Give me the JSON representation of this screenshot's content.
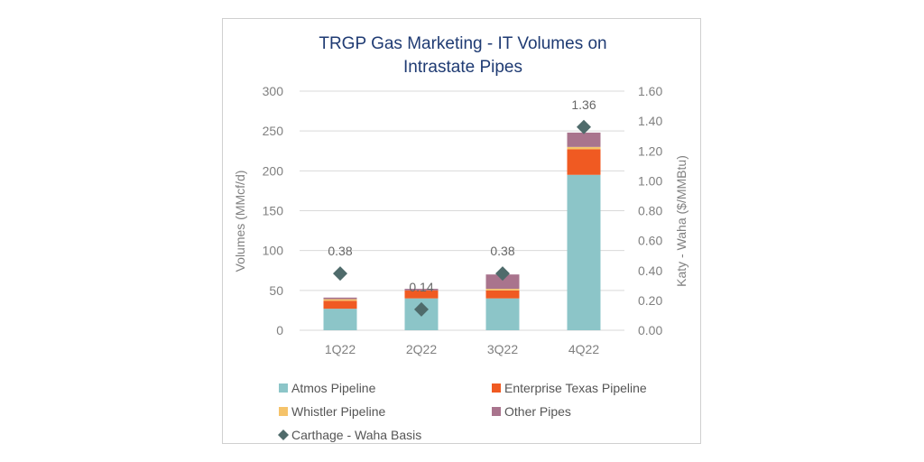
{
  "chart_data": {
    "type": "bar",
    "title_lines": [
      "TRGP Gas Marketing - IT Volumes on",
      "Intrastate Pipes"
    ],
    "categories": [
      "1Q22",
      "2Q22",
      "3Q22",
      "4Q22"
    ],
    "ylabel": "Volumes (MMcf/d)",
    "y2label": "Katy - Waha ($/MMBtu)",
    "ylim": [
      0,
      300
    ],
    "y_ticks": [
      "0",
      "50",
      "100",
      "150",
      "200",
      "250",
      "300"
    ],
    "y2lim": [
      0,
      1.6
    ],
    "y2_ticks": [
      "0.00",
      "0.20",
      "0.40",
      "0.60",
      "0.80",
      "1.00",
      "1.20",
      "1.40",
      "1.60"
    ],
    "grid": true,
    "legend_position": "bottom",
    "series": [
      {
        "name": "Atmos Pipeline",
        "kind": "stacked-bar",
        "color": "#8cc5c8",
        "values": [
          27,
          40,
          40,
          195
        ]
      },
      {
        "name": "Enterprise Texas Pipeline",
        "kind": "stacked-bar",
        "color": "#f05a22",
        "values": [
          10,
          10,
          10,
          32
        ]
      },
      {
        "name": "Whistler Pipeline",
        "kind": "stacked-bar",
        "color": "#f5c36a",
        "values": [
          2,
          0,
          2,
          3
        ]
      },
      {
        "name": "Other Pipes",
        "kind": "stacked-bar",
        "color": "#a9748d",
        "values": [
          2,
          2,
          18,
          18
        ]
      },
      {
        "name": "Carthage - Waha Basis",
        "kind": "marker",
        "axis": "secondary",
        "color": "#4f6b6b",
        "values": [
          0.38,
          0.14,
          0.38,
          1.36
        ],
        "labels": [
          "0.38",
          "0.14",
          "0.38",
          "1.36"
        ]
      }
    ]
  }
}
